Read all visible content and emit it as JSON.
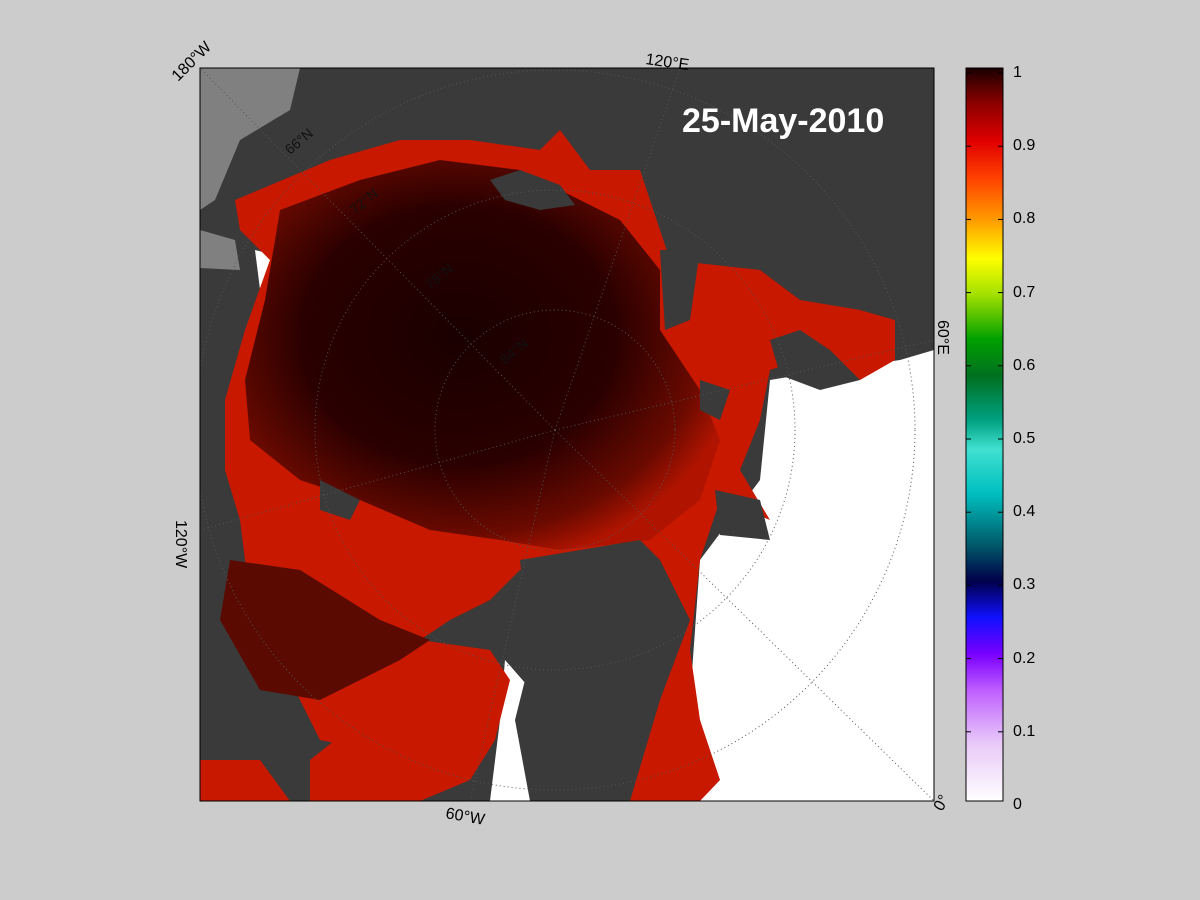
{
  "map": {
    "date": "25-May-2010",
    "longitude_labels": [
      "180°W",
      "120°E",
      "60°E",
      "0°",
      "60°W",
      "120°W"
    ],
    "latitude_labels": [
      "66°N",
      "72°N",
      "78°N",
      "84°N"
    ],
    "colors": {
      "background": "#cccccc",
      "land": "#3a3a3a",
      "land_alt": "#808080",
      "open_water": "#ffffff",
      "high_concentration": "#1a0000"
    }
  },
  "colorbar": {
    "ticks": [
      "1",
      "0.9",
      "0.8",
      "0.7",
      "0.6",
      "0.5",
      "0.4",
      "0.3",
      "0.2",
      "0.1",
      "0"
    ],
    "range": [
      0,
      1
    ]
  }
}
